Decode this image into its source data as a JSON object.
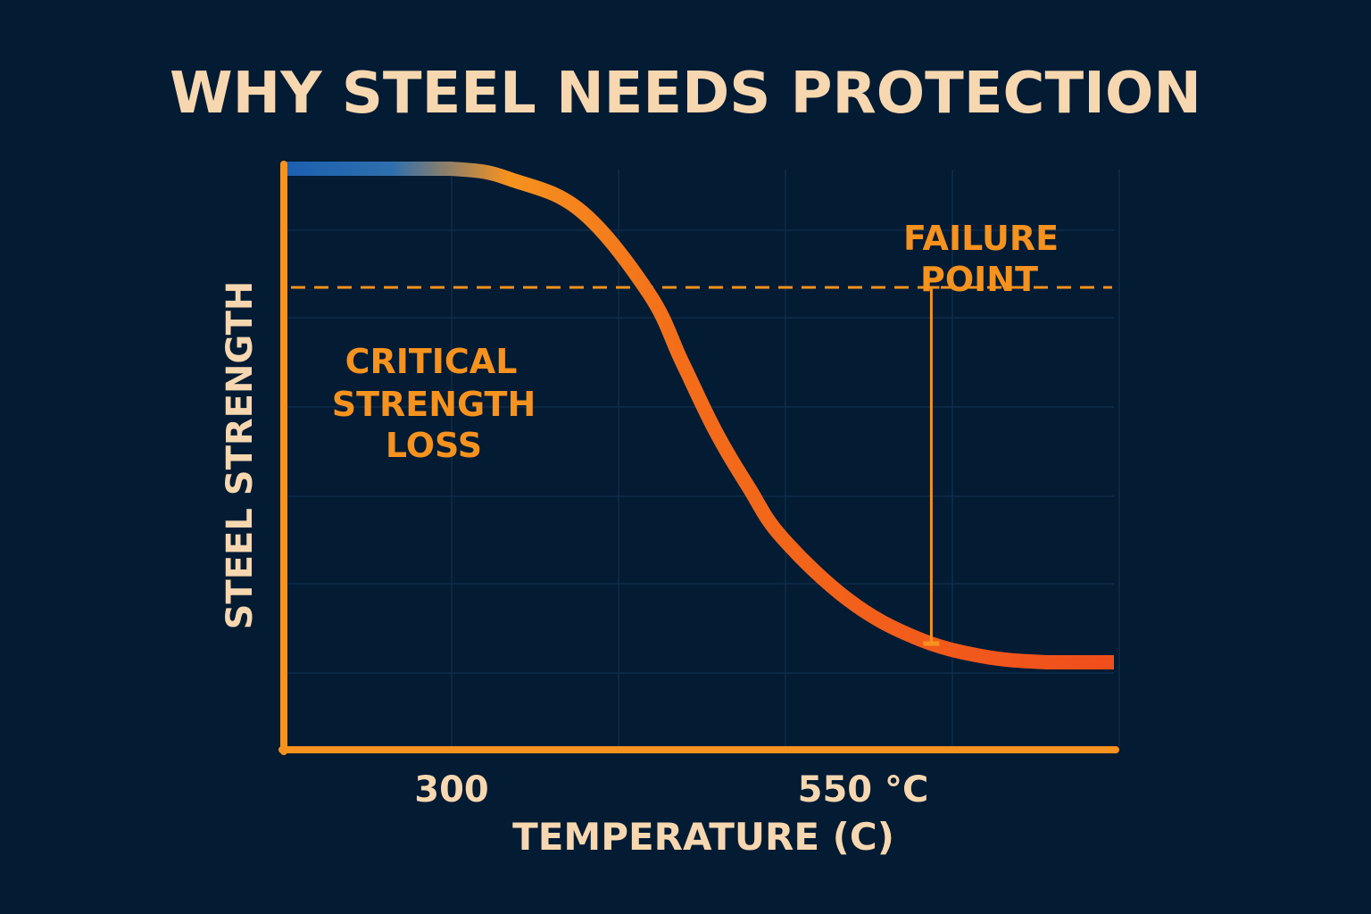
{
  "chart_data": {
    "type": "line",
    "title": "WHY STEEL NEEDS PROTECTION",
    "xlabel": "TEMPERATURE (C)",
    "ylabel": "STEEL STRENGTH",
    "x_ticks": [
      {
        "value": 300,
        "label": "300"
      },
      {
        "value": 550,
        "label": "550 °C"
      }
    ],
    "xlim": [
      200,
      700
    ],
    "ylim": [
      0,
      100
    ],
    "grid": true,
    "critical_level": 74,
    "annotations": {
      "critical": [
        "CRITICAL",
        "STRENGTH",
        "LOSS"
      ],
      "failure": [
        "FAILURE",
        "POINT"
      ],
      "failure_marker": {
        "x": 590,
        "y_top": 74,
        "y_bottom": 17
      }
    },
    "series": [
      {
        "x": [
          200,
          300,
          340,
          380,
          420,
          440,
          460,
          480,
          500,
          540,
          580,
          620,
          660,
          700
        ],
        "values": [
          93,
          93,
          91,
          86,
          73,
          62,
          51,
          42,
          34,
          24,
          18,
          15,
          14,
          14
        ]
      }
    ],
    "colors": {
      "background": "#031b33",
      "axis": "#f6921e",
      "title": "#f7d7b0",
      "annotation": "#f6921e",
      "curve_start": "#1c5fb0",
      "curve_mid": "#f6921e",
      "curve_end": "#f04e1c",
      "grid": "#0f2c4a"
    }
  }
}
